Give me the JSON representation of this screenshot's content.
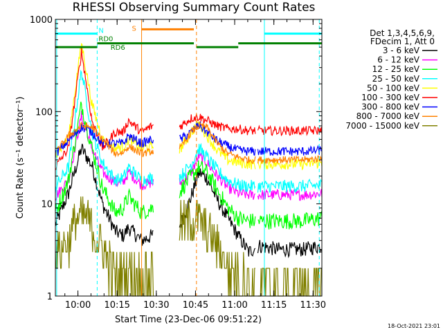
{
  "chart_data": {
    "type": "line",
    "title": "RHESSI Observing Summary Count Rates",
    "xlabel": "Start Time (23-Dec-06 09:51:22)",
    "ylabel": "Count Rate (s⁻¹ detector⁻¹)",
    "y_scale": "log",
    "ylim": [
      1,
      1000
    ],
    "xlim_minutes": [
      0,
      102
    ],
    "x_ticks": [
      {
        "label": "10:00",
        "t": 8.63
      },
      {
        "label": "10:15",
        "t": 23.63
      },
      {
        "label": "10:30",
        "t": 38.63
      },
      {
        "label": "10:45",
        "t": 53.63
      },
      {
        "label": "11:00",
        "t": 68.63
      },
      {
        "label": "11:15",
        "t": 83.63
      },
      {
        "label": "11:30",
        "t": 98.63
      }
    ],
    "y_ticks": [
      {
        "label": "1",
        "v": 1
      },
      {
        "label": "10",
        "v": 10
      },
      {
        "label": "100",
        "v": 100
      },
      {
        "label": "1000",
        "v": 1000
      }
    ],
    "legend_header": [
      "Det 1,3,4,5,6,9,",
      "FDecim 1, Att 0"
    ],
    "footer_date": "18-Oct-2021 23:01",
    "gaps": [
      [
        37.5,
        47.5
      ],
      [
        76.5,
        77.5
      ]
    ],
    "series": [
      {
        "name": "3 - 6 keV",
        "color": "#000000",
        "noise": 0.08,
        "points": [
          [
            0,
            6
          ],
          [
            5,
            13
          ],
          [
            10,
            40
          ],
          [
            14,
            26
          ],
          [
            18,
            10
          ],
          [
            23,
            5
          ],
          [
            26,
            4.5
          ],
          [
            28,
            5.5
          ],
          [
            33,
            4
          ],
          [
            37,
            4.5
          ],
          [
            48,
            6
          ],
          [
            52,
            12
          ],
          [
            55,
            22
          ],
          [
            58,
            19
          ],
          [
            62,
            11
          ],
          [
            66,
            7
          ],
          [
            70,
            4.5
          ],
          [
            74,
            3
          ],
          [
            78,
            3.5
          ],
          [
            85,
            3.2
          ],
          [
            95,
            3.2
          ],
          [
            102,
            3.5
          ]
        ]
      },
      {
        "name": "6 - 12 keV",
        "color": "#ff00ff",
        "noise": 0.06,
        "points": [
          [
            0,
            12
          ],
          [
            5,
            18
          ],
          [
            10,
            90
          ],
          [
            14,
            40
          ],
          [
            18,
            22
          ],
          [
            23,
            17
          ],
          [
            26,
            17
          ],
          [
            28,
            22
          ],
          [
            33,
            16
          ],
          [
            37,
            17
          ],
          [
            48,
            17
          ],
          [
            52,
            22
          ],
          [
            55,
            33
          ],
          [
            58,
            28
          ],
          [
            62,
            20
          ],
          [
            66,
            15
          ],
          [
            70,
            13
          ],
          [
            74,
            12.5
          ],
          [
            85,
            12.5
          ],
          [
            95,
            12.5
          ],
          [
            102,
            13
          ]
        ]
      },
      {
        "name": "12 - 25 keV",
        "color": "#00ff00",
        "noise": 0.09,
        "points": [
          [
            0,
            8
          ],
          [
            5,
            18
          ],
          [
            10,
            120
          ],
          [
            14,
            40
          ],
          [
            18,
            15
          ],
          [
            23,
            8
          ],
          [
            26,
            9
          ],
          [
            28,
            12
          ],
          [
            33,
            8
          ],
          [
            37,
            9
          ],
          [
            48,
            14
          ],
          [
            52,
            20
          ],
          [
            55,
            25
          ],
          [
            58,
            22
          ],
          [
            62,
            14
          ],
          [
            66,
            9
          ],
          [
            70,
            7
          ],
          [
            74,
            6.5
          ],
          [
            85,
            6.5
          ],
          [
            95,
            6.5
          ],
          [
            102,
            7
          ]
        ]
      },
      {
        "name": "25 - 50 keV",
        "color": "#00ffff",
        "noise": 0.07,
        "points": [
          [
            0,
            15
          ],
          [
            5,
            25
          ],
          [
            10,
            280
          ],
          [
            14,
            60
          ],
          [
            18,
            28
          ],
          [
            23,
            18
          ],
          [
            26,
            19
          ],
          [
            28,
            25
          ],
          [
            33,
            18
          ],
          [
            37,
            19
          ],
          [
            48,
            20
          ],
          [
            52,
            27
          ],
          [
            55,
            40
          ],
          [
            58,
            32
          ],
          [
            62,
            23
          ],
          [
            66,
            18
          ],
          [
            70,
            16
          ],
          [
            74,
            15.5
          ],
          [
            85,
            15.5
          ],
          [
            95,
            15.5
          ],
          [
            102,
            16
          ]
        ]
      },
      {
        "name": "50 - 100 keV",
        "color": "#ffff00",
        "noise": 0.06,
        "points": [
          [
            0,
            35
          ],
          [
            5,
            50
          ],
          [
            10,
            560
          ],
          [
            14,
            120
          ],
          [
            18,
            50
          ],
          [
            23,
            40
          ],
          [
            26,
            42
          ],
          [
            28,
            50
          ],
          [
            33,
            40
          ],
          [
            37,
            42
          ],
          [
            48,
            40
          ],
          [
            52,
            60
          ],
          [
            55,
            75
          ],
          [
            58,
            55
          ],
          [
            62,
            38
          ],
          [
            66,
            30
          ],
          [
            70,
            28
          ],
          [
            74,
            27
          ],
          [
            85,
            27
          ],
          [
            95,
            27
          ],
          [
            102,
            28
          ]
        ]
      },
      {
        "name": "100 - 300 keV",
        "color": "#ff0000",
        "noise": 0.05,
        "points": [
          [
            0,
            25
          ],
          [
            5,
            40
          ],
          [
            10,
            450
          ],
          [
            14,
            80
          ],
          [
            18,
            40
          ],
          [
            23,
            60
          ],
          [
            26,
            60
          ],
          [
            28,
            80
          ],
          [
            33,
            60
          ],
          [
            37,
            70
          ],
          [
            48,
            70
          ],
          [
            52,
            85
          ],
          [
            55,
            88
          ],
          [
            58,
            80
          ],
          [
            62,
            70
          ],
          [
            66,
            65
          ],
          [
            70,
            65
          ],
          [
            74,
            62
          ],
          [
            85,
            62
          ],
          [
            95,
            62
          ],
          [
            102,
            62
          ]
        ]
      },
      {
        "name": "300 - 800 keV",
        "color": "#0000ff",
        "noise": 0.05,
        "points": [
          [
            0,
            35
          ],
          [
            5,
            48
          ],
          [
            10,
            68
          ],
          [
            14,
            60
          ],
          [
            18,
            45
          ],
          [
            23,
            45
          ],
          [
            26,
            45
          ],
          [
            28,
            55
          ],
          [
            33,
            45
          ],
          [
            37,
            50
          ],
          [
            48,
            50
          ],
          [
            52,
            60
          ],
          [
            55,
            72
          ],
          [
            58,
            60
          ],
          [
            62,
            48
          ],
          [
            66,
            42
          ],
          [
            70,
            38
          ],
          [
            74,
            37
          ],
          [
            85,
            37
          ],
          [
            95,
            37
          ],
          [
            102,
            38
          ]
        ]
      },
      {
        "name": "800 - 7000 keV",
        "color": "#ff8000",
        "noise": 0.04,
        "points": [
          [
            0,
            35
          ],
          [
            5,
            55
          ],
          [
            10,
            70
          ],
          [
            14,
            68
          ],
          [
            18,
            50
          ],
          [
            23,
            35
          ],
          [
            26,
            36
          ],
          [
            28,
            42
          ],
          [
            33,
            35
          ],
          [
            37,
            37
          ],
          [
            48,
            40
          ],
          [
            52,
            60
          ],
          [
            55,
            70
          ],
          [
            58,
            68
          ],
          [
            62,
            45
          ],
          [
            66,
            35
          ],
          [
            70,
            32
          ],
          [
            74,
            30
          ],
          [
            85,
            30
          ],
          [
            95,
            30
          ],
          [
            102,
            31
          ]
        ]
      },
      {
        "name": "7000 - 15000 keV",
        "color": "#808000",
        "noise": 0.25,
        "step": true,
        "points": [
          [
            0,
            3
          ],
          [
            5,
            4
          ],
          [
            8,
            7
          ],
          [
            12,
            7
          ],
          [
            16,
            4
          ],
          [
            20,
            2.5
          ],
          [
            23,
            1.6
          ],
          [
            28,
            2
          ],
          [
            33,
            1.5
          ],
          [
            37,
            2
          ],
          [
            48,
            6
          ],
          [
            54,
            7
          ],
          [
            58,
            5
          ],
          [
            62,
            3.5
          ],
          [
            66,
            2
          ],
          [
            70,
            1.8
          ],
          [
            74,
            1.5
          ],
          [
            85,
            1.3
          ],
          [
            95,
            1.3
          ],
          [
            102,
            1.3
          ]
        ]
      }
    ],
    "annotations": {
      "N": {
        "label": "N",
        "color": "#00ffff",
        "level": 700,
        "start": 0,
        "end": 16
      },
      "RD0": {
        "label": "RD0",
        "color": "#008000",
        "start_level": 500,
        "start_end": 16,
        "level": 550,
        "start": 16,
        "end": 53
      },
      "RD6": {
        "label": "RD6",
        "color": "#008000",
        "level": 500,
        "start": 19,
        "end": 53
      },
      "S": {
        "label": "S",
        "color": "#ff8000",
        "level": 780,
        "start": 33,
        "end": 53
      }
    },
    "segments": {
      "N_right": {
        "color": "#00ffff",
        "level": 700,
        "start": 80,
        "end": 102
      },
      "RD_right_low": {
        "color": "#008000",
        "level": 500,
        "start": 54,
        "end": 70
      },
      "RD_right_high": {
        "color": "#008000",
        "level": 550,
        "start": 70,
        "end": 102
      }
    },
    "vlines": [
      {
        "t": 0.5,
        "color": "#00ffff",
        "dash": false
      },
      {
        "t": 16,
        "color": "#00ffff",
        "dash": true
      },
      {
        "t": 33,
        "color": "#ff8000",
        "dash": false
      },
      {
        "t": 54,
        "color": "#ff8000",
        "dash": true
      },
      {
        "t": 80,
        "color": "#00ffff",
        "dash": false
      },
      {
        "t": 101,
        "color": "#00ffff",
        "dash": true
      }
    ]
  }
}
